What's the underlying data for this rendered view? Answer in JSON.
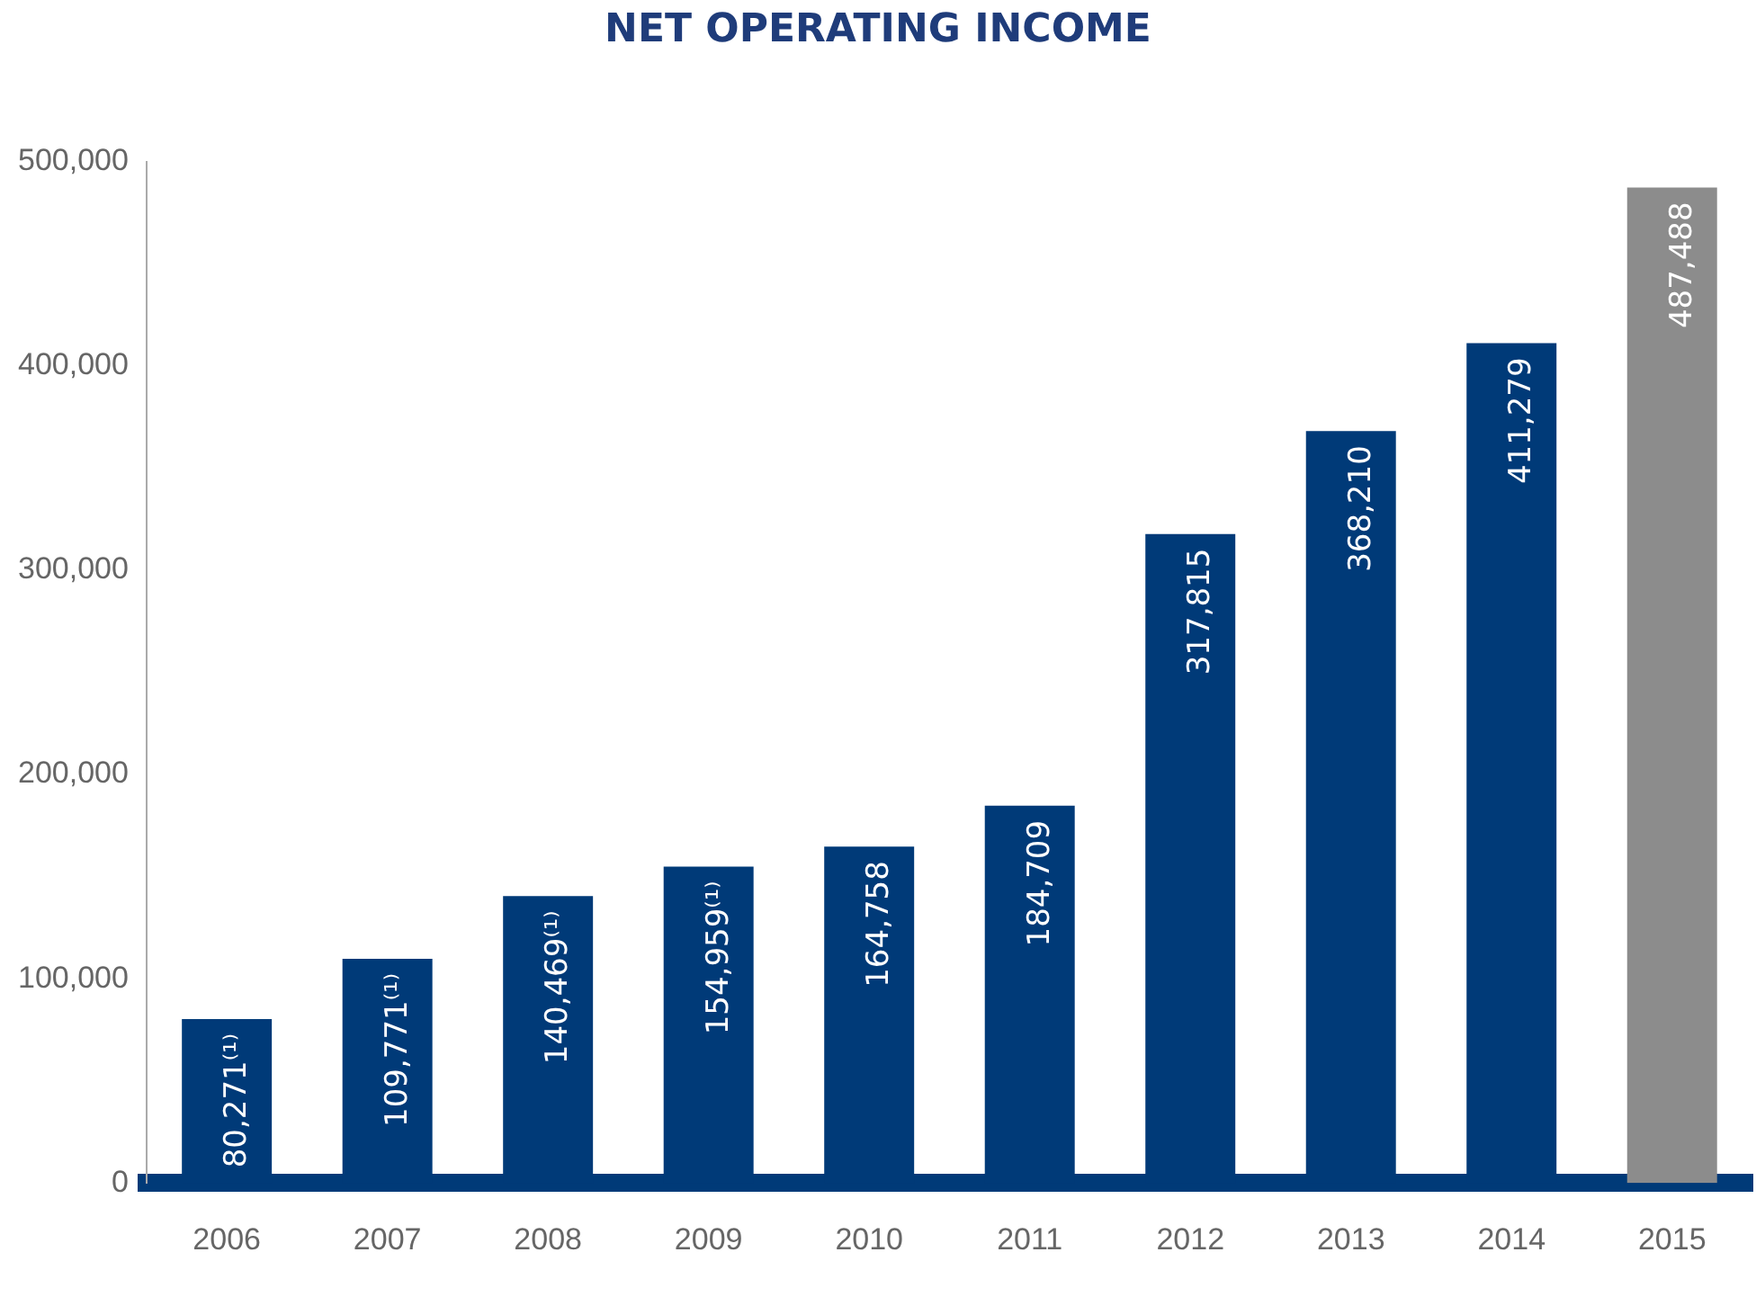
{
  "chart_data": {
    "type": "bar",
    "title": "NET OPERATING INCOME",
    "categories": [
      "2006",
      "2007",
      "2008",
      "2009",
      "2010",
      "2011",
      "2012",
      "2013",
      "2014",
      "2015"
    ],
    "values": [
      80271,
      109771,
      140469,
      154959,
      164758,
      184709,
      317815,
      368210,
      411279,
      487488
    ],
    "colors": [
      "#003a78",
      "#003a78",
      "#003a78",
      "#003a78",
      "#003a78",
      "#003a78",
      "#003a78",
      "#003a78",
      "#003a78",
      "#8c8c8c"
    ],
    "value_labels": [
      "80,271⁽¹⁾",
      "109,771⁽¹⁾",
      "140,469⁽¹⁾",
      "154,959⁽¹⁾",
      "164,758",
      "184,709",
      "317,815",
      "368,210",
      "411,279",
      "487,488"
    ],
    "ylim": [
      0,
      500000
    ],
    "yticks": [
      0,
      {
        "value": 100000,
        "label": "100,000"
      },
      {
        "value": 200000,
        "label": "200,000"
      },
      {
        "value": 300000,
        "label": "300,000"
      },
      {
        "value": 400000,
        "label": "400,000"
      },
      {
        "value": 500000,
        "label": "500,000"
      }
    ]
  }
}
